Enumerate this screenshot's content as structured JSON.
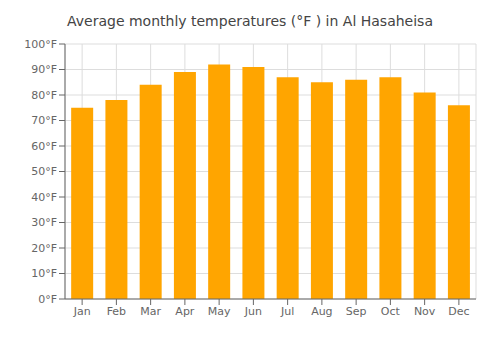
{
  "chart_data": {
    "type": "bar",
    "title": "Average monthly temperatures (°F ) in Al Hasaheisa",
    "categories": [
      "Jan",
      "Feb",
      "Mar",
      "Apr",
      "May",
      "Jun",
      "Jul",
      "Aug",
      "Sep",
      "Oct",
      "Nov",
      "Dec"
    ],
    "values": [
      75,
      78,
      84,
      89,
      92,
      91,
      87,
      85,
      86,
      87,
      81,
      76
    ],
    "color": "#FFA500",
    "ylim": [
      0,
      100
    ],
    "yticks": [
      {
        "value": 0,
        "label": "0°F"
      },
      {
        "value": 10,
        "label": "10°F"
      },
      {
        "value": 20,
        "label": "20°F"
      },
      {
        "value": 30,
        "label": "30°F"
      },
      {
        "value": 40,
        "label": "40°F"
      },
      {
        "value": 50,
        "label": "50°F"
      },
      {
        "value": 60,
        "label": "60°F"
      },
      {
        "value": 70,
        "label": "70°F"
      },
      {
        "value": 80,
        "label": "80°F"
      },
      {
        "value": 90,
        "label": "90°F"
      },
      {
        "value": 100,
        "label": "100°F"
      }
    ],
    "grid": true
  }
}
